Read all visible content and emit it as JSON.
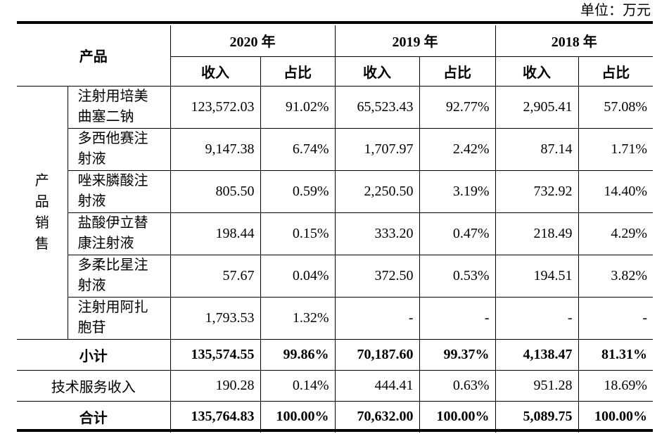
{
  "unit_label": "单位：万元",
  "header": {
    "product": "产品",
    "years": [
      "2020 年",
      "2019 年",
      "2018 年"
    ],
    "income": "收入",
    "share": "占比"
  },
  "category": "产品销售",
  "rows": [
    {
      "name": [
        "注射用培美",
        "曲塞二钠"
      ],
      "values": [
        "123,572.03",
        "91.02%",
        "65,523.43",
        "92.77%",
        "2,905.41",
        "57.08%"
      ]
    },
    {
      "name": [
        "多西他赛注",
        "射液"
      ],
      "values": [
        "9,147.38",
        "6.74%",
        "1,707.97",
        "2.42%",
        "87.14",
        "1.71%"
      ]
    },
    {
      "name": [
        "唑来膦酸注",
        "射液"
      ],
      "values": [
        "805.50",
        "0.59%",
        "2,250.50",
        "3.19%",
        "732.92",
        "14.40%"
      ]
    },
    {
      "name": [
        "盐酸伊立替",
        "康注射液"
      ],
      "values": [
        "198.44",
        "0.15%",
        "333.20",
        "0.47%",
        "218.49",
        "4.29%"
      ]
    },
    {
      "name": [
        "多柔比星注",
        "射液"
      ],
      "values": [
        "57.67",
        "0.04%",
        "372.50",
        "0.53%",
        "194.51",
        "3.82%"
      ]
    },
    {
      "name": [
        "注射用阿扎",
        "胞苷"
      ],
      "values": [
        "1,793.53",
        "1.32%",
        "-",
        "-",
        "-",
        "-"
      ]
    }
  ],
  "subtotal": {
    "label": "小计",
    "values": [
      "135,574.55",
      "99.86%",
      "70,187.60",
      "99.37%",
      "4,138.47",
      "81.31%"
    ]
  },
  "tech": {
    "label": "技术服务收入",
    "values": [
      "190.28",
      "0.14%",
      "444.41",
      "0.63%",
      "951.28",
      "18.69%"
    ]
  },
  "total": {
    "label": "合计",
    "values": [
      "135,764.83",
      "100.00%",
      "70,632.00",
      "100.00%",
      "5,089.75",
      "100.00%"
    ]
  }
}
